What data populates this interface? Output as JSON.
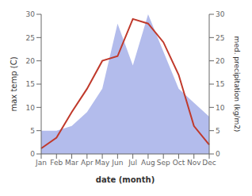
{
  "chart_data": {
    "type": "line",
    "xlabel": "date (month)",
    "ylabel": "max temp (C)",
    "y2label": "med. precipitation (kg/m2)",
    "categories": [
      "Jan",
      "Feb",
      "Mar",
      "Apr",
      "May",
      "Jun",
      "Jul",
      "Aug",
      "Sep",
      "Oct",
      "Nov",
      "Dec"
    ],
    "series": [
      {
        "type": "area",
        "axis": "y2",
        "color": "#b3bcec",
        "values": [
          5,
          5,
          6,
          9,
          14,
          28,
          19,
          30,
          22,
          14,
          11,
          8
        ]
      },
      {
        "type": "line",
        "color": "#c0392b",
        "values": [
          1.2,
          3.5,
          9,
          14,
          20,
          21,
          29,
          28,
          24,
          17,
          6,
          2
        ]
      }
    ],
    "ylim": [
      0,
      30
    ],
    "yticks": [
      0,
      5,
      10,
      15,
      20,
      25,
      30
    ],
    "y2lim": [
      0,
      30
    ],
    "y2ticks": [
      0,
      5,
      10,
      15,
      20,
      25,
      30
    ],
    "grid": false
  }
}
